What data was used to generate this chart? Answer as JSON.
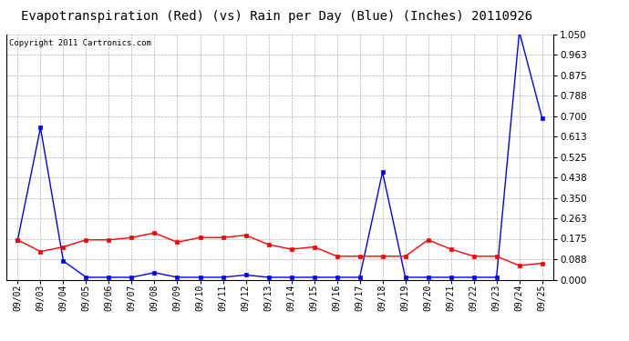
{
  "title": "Evapotranspiration (Red) (vs) Rain per Day (Blue) (Inches) 20110926",
  "copyright": "Copyright 2011 Cartronics.com",
  "dates": [
    "09/02",
    "09/03",
    "09/04",
    "09/05",
    "09/06",
    "09/07",
    "09/08",
    "09/09",
    "09/10",
    "09/11",
    "09/12",
    "09/13",
    "09/14",
    "09/15",
    "09/16",
    "09/17",
    "09/18",
    "09/19",
    "09/20",
    "09/21",
    "09/22",
    "09/23",
    "09/24",
    "09/25"
  ],
  "rain_blue": [
    0.17,
    0.65,
    0.08,
    0.01,
    0.01,
    0.01,
    0.03,
    0.01,
    0.01,
    0.01,
    0.02,
    0.01,
    0.01,
    0.01,
    0.01,
    0.01,
    0.46,
    0.01,
    0.01,
    0.01,
    0.01,
    0.01,
    1.06,
    0.69
  ],
  "et_red": [
    0.17,
    0.12,
    0.14,
    0.17,
    0.17,
    0.18,
    0.2,
    0.16,
    0.18,
    0.18,
    0.19,
    0.15,
    0.13,
    0.14,
    0.1,
    0.1,
    0.1,
    0.1,
    0.17,
    0.13,
    0.1,
    0.1,
    0.06,
    0.07
  ],
  "ylim": [
    0.0,
    1.05
  ],
  "yticks": [
    0.0,
    0.088,
    0.175,
    0.263,
    0.35,
    0.438,
    0.525,
    0.613,
    0.7,
    0.788,
    0.875,
    0.963,
    1.05
  ],
  "blue_color": "#0000ff",
  "red_color": "#ff0000",
  "background_color": "#ffffff",
  "grid_color": "#b0b0b0",
  "title_fontsize": 10,
  "copyright_fontsize": 6.5
}
